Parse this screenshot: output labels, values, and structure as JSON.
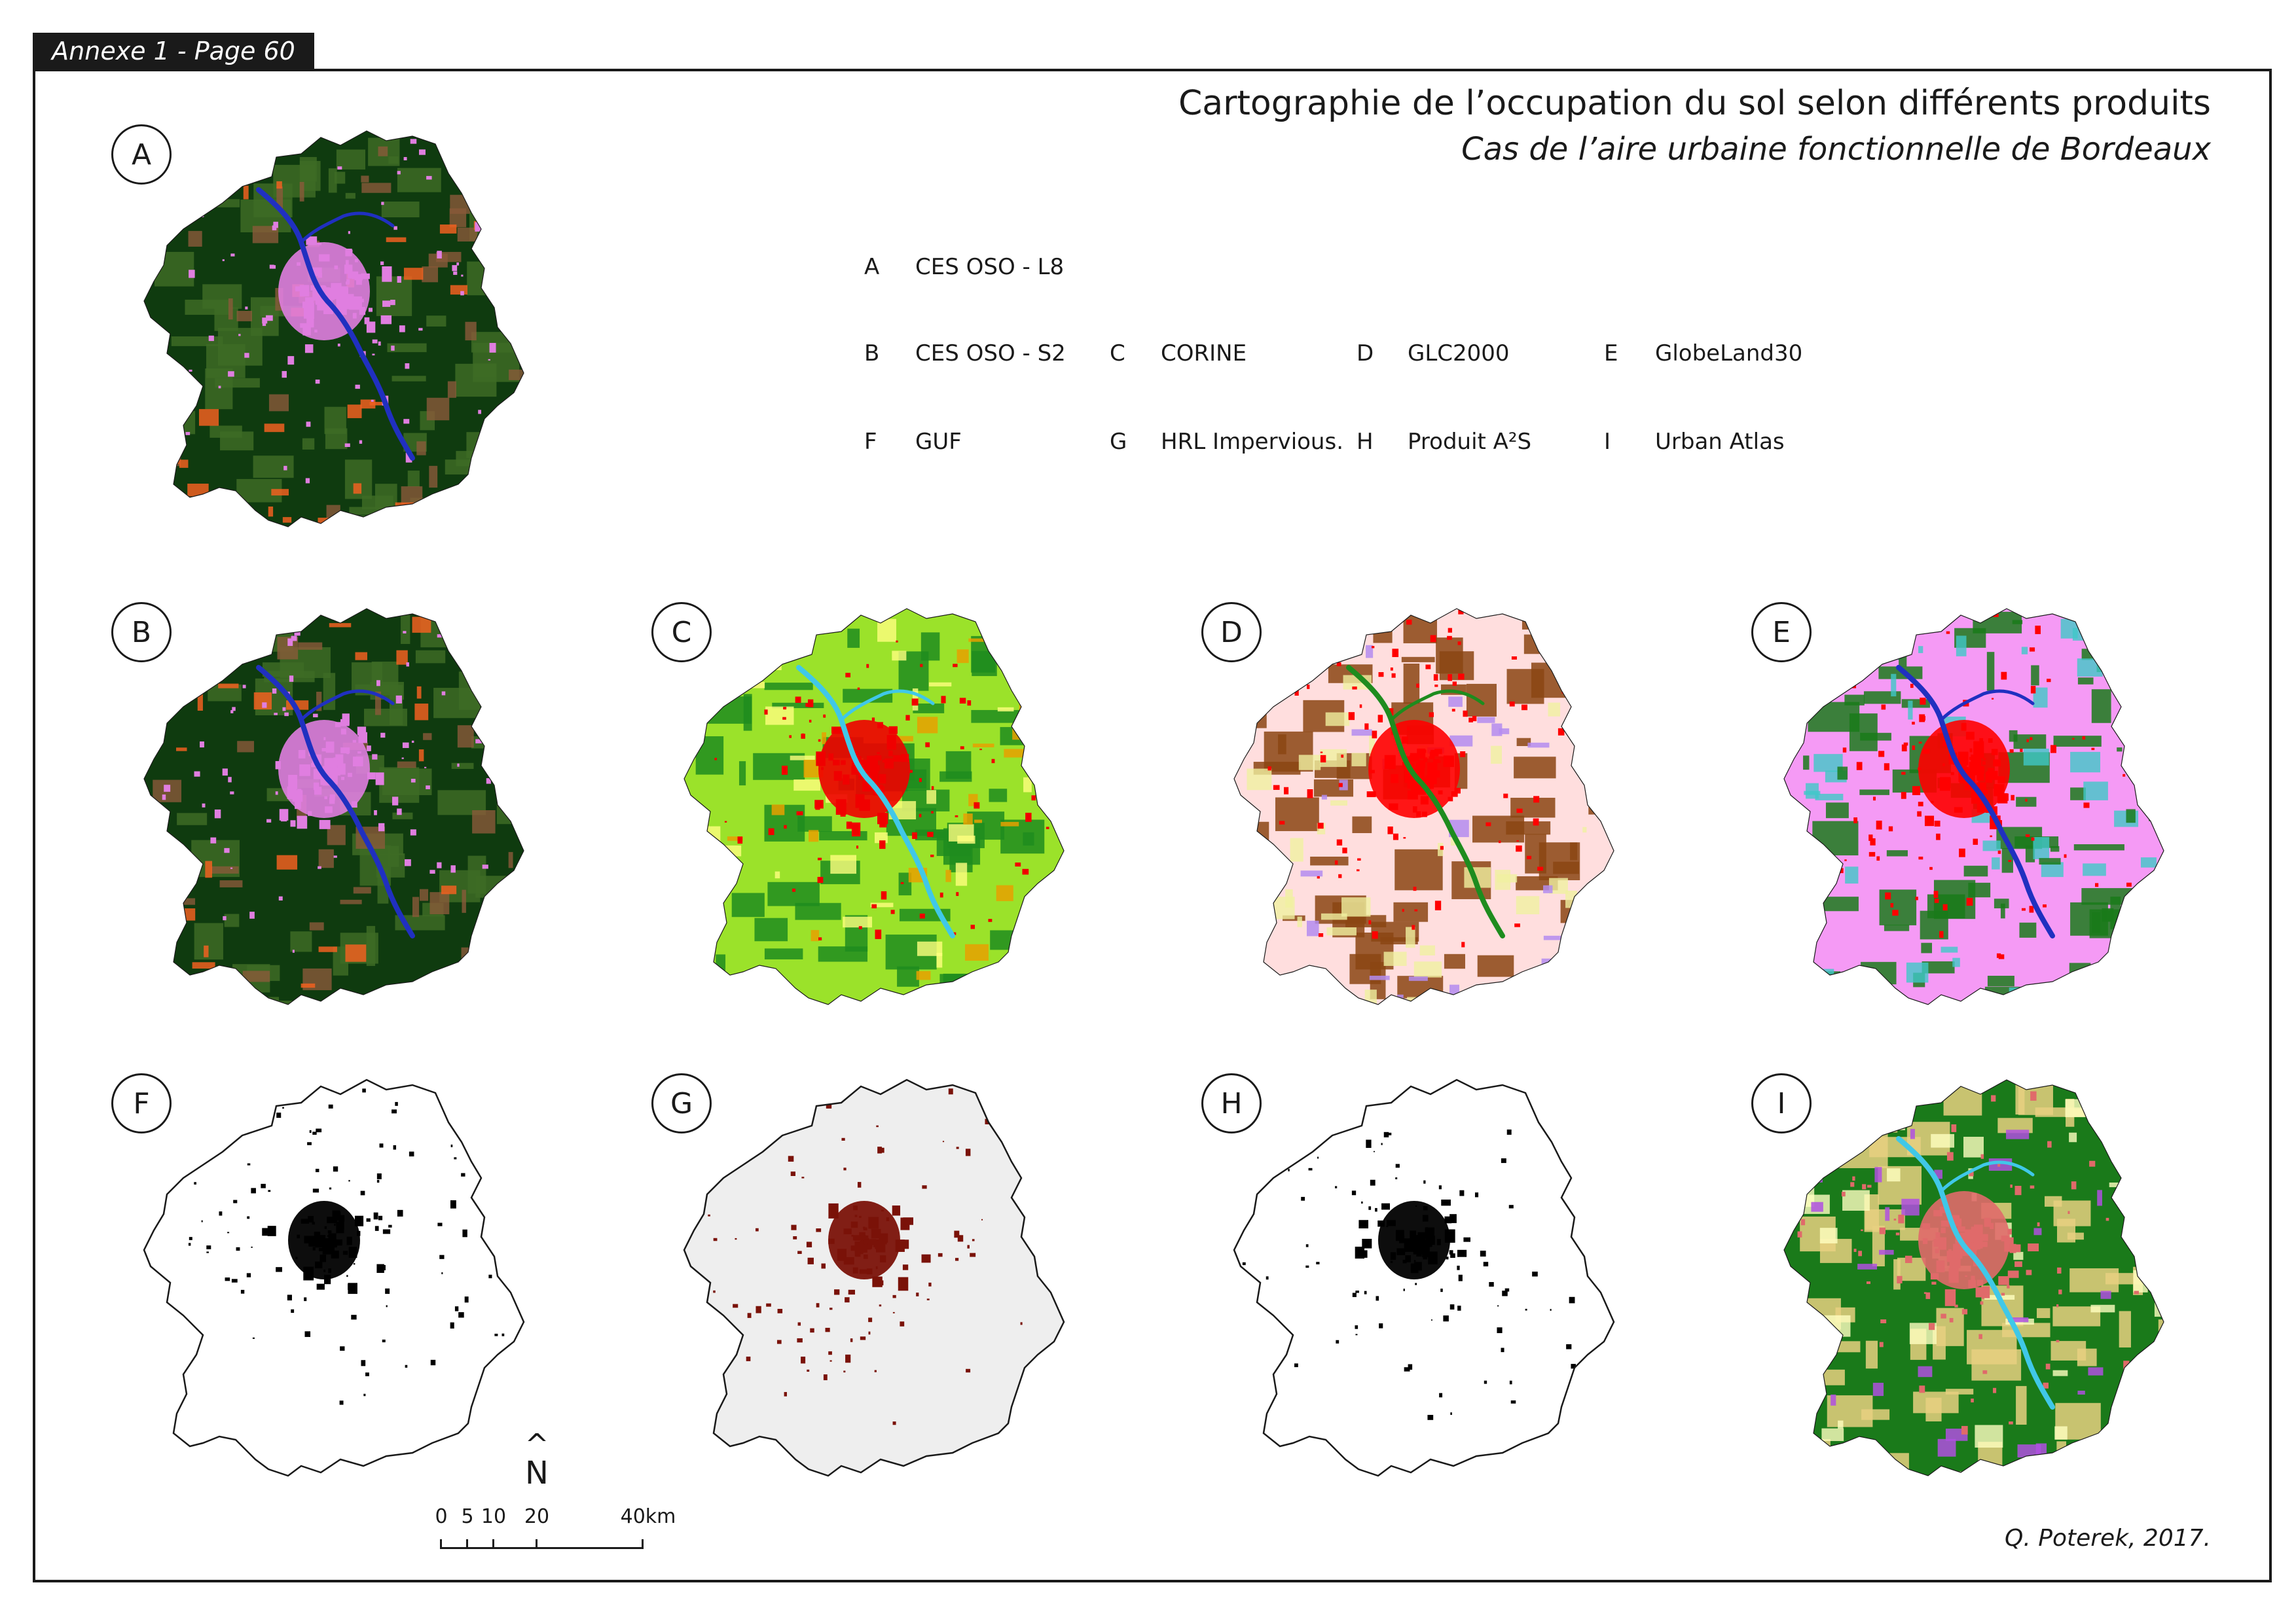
{
  "header": {
    "annex_label": "Annexe 1 - Page 60",
    "title": "Cartographie de l’occupation du sol selon différents produits",
    "subtitle": "Cas de l’aire urbaine fonctionnelle de Bordeaux"
  },
  "legend": [
    {
      "key": "A",
      "label": "CES OSO - L8"
    },
    {
      "key": "B",
      "label": "CES OSO - S2"
    },
    {
      "key": "C",
      "label": "CORINE"
    },
    {
      "key": "D",
      "label": "GLC2000"
    },
    {
      "key": "E",
      "label": "GlobeLand30"
    },
    {
      "key": "F",
      "label": "GUF"
    },
    {
      "key": "G",
      "label": "HRL Impervious."
    },
    {
      "key": "H",
      "label": "Produit A²S"
    },
    {
      "key": "I",
      "label": "Urban Atlas"
    }
  ],
  "panels": [
    {
      "key": "A",
      "product": "CES OSO - L8",
      "palette": {
        "base": "#0f3b0f",
        "secondary": "#3d6b25",
        "urban": "#e07ee0",
        "accent": "#f06020",
        "water": "#2030c0",
        "extra": "#8a5a3a"
      }
    },
    {
      "key": "B",
      "product": "CES OSO - S2",
      "palette": {
        "base": "#0f3b0f",
        "secondary": "#3d6b25",
        "urban": "#e07ee0",
        "accent": "#f06020",
        "water": "#2030c0",
        "extra": "#8a5a3a"
      }
    },
    {
      "key": "C",
      "product": "CORINE",
      "palette": {
        "base": "#9be22a",
        "secondary": "#1e8c1e",
        "urban": "#f00000",
        "accent": "#e8a000",
        "water": "#40c8e8",
        "extra": "#ffff80"
      }
    },
    {
      "key": "D",
      "product": "GLC2000",
      "palette": {
        "base": "#ffdede",
        "secondary": "#8b4513",
        "urban": "#ff0000",
        "accent": "#b48cf0",
        "water": "#1e8c1e",
        "extra": "#f0f0a0"
      }
    },
    {
      "key": "E",
      "product": "GlobeLand30",
      "palette": {
        "base": "#f59af5",
        "secondary": "#1a7a1a",
        "urban": "#ff0000",
        "accent": "#1a7a1a",
        "water": "#2030c0",
        "extra": "#40c8c8"
      }
    },
    {
      "key": "F",
      "product": "GUF",
      "palette": {
        "base": "#ffffff",
        "secondary": "#ffffff",
        "urban": "#000000",
        "accent": "#000000",
        "water": "#ffffff",
        "extra": "#ffffff"
      }
    },
    {
      "key": "G",
      "product": "HRL Impervious.",
      "palette": {
        "base": "#eeeeee",
        "secondary": "#eeeeee",
        "urban": "#7a1208",
        "accent": "#9a3018",
        "water": "#eeeeee",
        "extra": "#eeeeee"
      }
    },
    {
      "key": "H",
      "product": "Produit A²S",
      "palette": {
        "base": "#ffffff",
        "secondary": "#ffffff",
        "urban": "#000000",
        "accent": "#000000",
        "water": "#ffffff",
        "extra": "#ffffff"
      }
    },
    {
      "key": "I",
      "product": "Urban Atlas",
      "palette": {
        "base": "#1a7a1a",
        "secondary": "#e8d080",
        "urban": "#e06a6a",
        "accent": "#b050e0",
        "water": "#40c8e8",
        "extra": "#ffffc0"
      }
    }
  ],
  "north_arrow": {
    "hat": "^",
    "letter": "N"
  },
  "scale_bar": {
    "ticks": [
      "0",
      "5",
      "10",
      "20",
      "40km"
    ]
  },
  "credit": "Q. Poterek, 2017."
}
